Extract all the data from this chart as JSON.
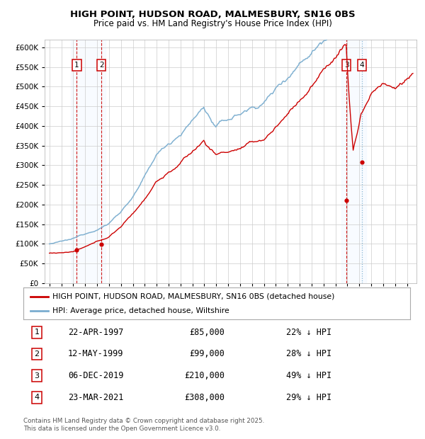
{
  "title": "HIGH POINT, HUDSON ROAD, MALMESBURY, SN16 0BS",
  "subtitle": "Price paid vs. HM Land Registry's House Price Index (HPI)",
  "ylabel_ticks": [
    "£0",
    "£50K",
    "£100K",
    "£150K",
    "£200K",
    "£250K",
    "£300K",
    "£350K",
    "£400K",
    "£450K",
    "£500K",
    "£550K",
    "£600K"
  ],
  "ytick_values": [
    0,
    50000,
    100000,
    150000,
    200000,
    250000,
    300000,
    350000,
    400000,
    450000,
    500000,
    550000,
    600000
  ],
  "xlim_start": 1994.6,
  "xlim_end": 2025.8,
  "ylim_min": 0,
  "ylim_max": 620000,
  "transactions": [
    {
      "num": 1,
      "date": "22-APR-1997",
      "year": 1997.3,
      "price": 85000,
      "price_str": "£85,000",
      "pct": "22% ↓ HPI"
    },
    {
      "num": 2,
      "date": "12-MAY-1999",
      "year": 1999.37,
      "price": 99000,
      "price_str": "£99,000",
      "pct": "28% ↓ HPI"
    },
    {
      "num": 3,
      "date": "06-DEC-2019",
      "year": 2019.92,
      "price": 210000,
      "price_str": "£210,000",
      "pct": "49% ↓ HPI"
    },
    {
      "num": 4,
      "date": "23-MAR-2021",
      "year": 2021.23,
      "price": 308000,
      "price_str": "£308,000",
      "pct": "29% ↓ HPI"
    }
  ],
  "legend_label_red": "HIGH POINT, HUDSON ROAD, MALMESBURY, SN16 0BS (detached house)",
  "legend_label_blue": "HPI: Average price, detached house, Wiltshire",
  "footer_line1": "Contains HM Land Registry data © Crown copyright and database right 2025.",
  "footer_line2": "This data is licensed under the Open Government Licence v3.0.",
  "red_color": "#cc0000",
  "blue_color": "#7aadcf",
  "bg_color": "#ffffff",
  "grid_color": "#cccccc",
  "shading_color": "#ddeeff",
  "title_fontsize": 9.5,
  "subtitle_fontsize": 8.5
}
